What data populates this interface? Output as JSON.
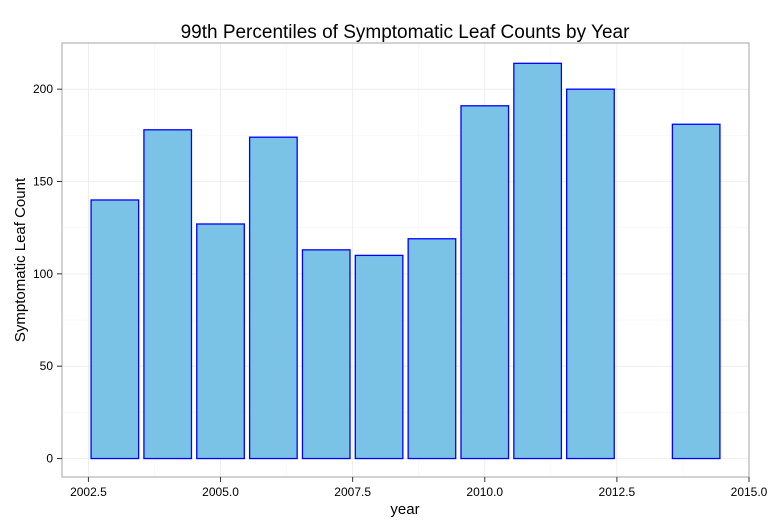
{
  "chart_data": {
    "type": "bar",
    "title": "99th Percentiles of Symptomatic Leaf Counts by Year",
    "xlabel": "year",
    "ylabel": "Symptomatic Leaf Count",
    "x": [
      2003,
      2004,
      2005,
      2006,
      2007,
      2008,
      2009,
      2010,
      2011,
      2012,
      2014
    ],
    "values": [
      140,
      178,
      127,
      174,
      113,
      110,
      119,
      191,
      214,
      200,
      181
    ],
    "bar_width": 0.9,
    "xlim": [
      2002.0,
      2015.0
    ],
    "ylim": [
      -10,
      225
    ],
    "x_ticks": [
      2002.5,
      2005.0,
      2007.5,
      2010.0,
      2012.5,
      2015.0
    ],
    "x_tick_labels": [
      "2002.5",
      "2005.0",
      "2007.5",
      "2010.0",
      "2012.5",
      "2015.0"
    ],
    "y_ticks": [
      0,
      50,
      100,
      150,
      200
    ],
    "y_tick_labels": [
      "0",
      "50",
      "100",
      "150",
      "200"
    ],
    "grid": true,
    "legend": "none",
    "colors": {
      "bar_fill": "#7ac3e6",
      "bar_stroke": "#0000ff",
      "grid_major": "#ebebeb",
      "grid_minor": "#f5f5f5",
      "panel_border": "#a6a6a6"
    }
  }
}
